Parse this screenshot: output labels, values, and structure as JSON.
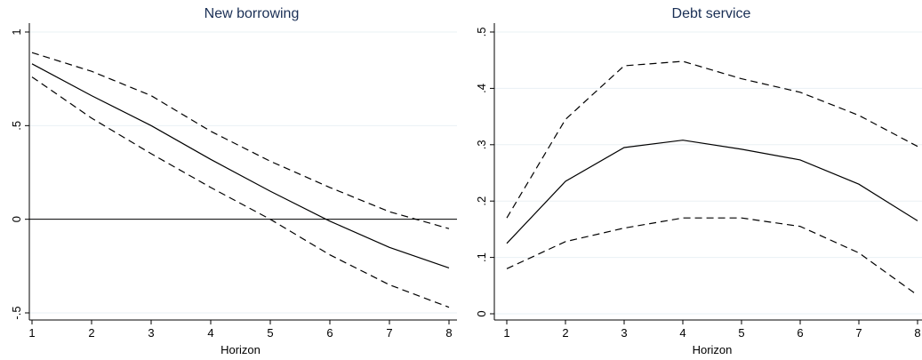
{
  "colors": {
    "line": "#000000",
    "gridline": "#eaf0f4",
    "title": "#1a2f55",
    "background": "#ffffff"
  },
  "chart_data": [
    {
      "type": "line",
      "title": "New borrowing",
      "xlabel": "Horizon",
      "ylabel": "",
      "x": [
        1,
        2,
        3,
        4,
        5,
        6,
        7,
        8
      ],
      "xlim": [
        1,
        8
      ],
      "ylim": [
        -0.5,
        1
      ],
      "x_ticks": [
        1,
        2,
        3,
        4,
        5,
        6,
        7,
        8
      ],
      "y_ticks": [
        -0.5,
        0,
        0.5,
        1
      ],
      "y_tick_labels": [
        "-.5",
        "0",
        ".5",
        "1"
      ],
      "y_tick_labels_rotated": true,
      "reference_line_y": 0,
      "grid": true,
      "legend": "none",
      "series": [
        {
          "style": "solid",
          "values": [
            0.83,
            0.66,
            0.5,
            0.32,
            0.15,
            -0.01,
            -0.15,
            -0.26
          ]
        },
        {
          "style": "dashed",
          "values": [
            0.89,
            0.79,
            0.66,
            0.47,
            0.31,
            0.17,
            0.04,
            -0.05
          ]
        },
        {
          "style": "dashed",
          "values": [
            0.76,
            0.54,
            0.35,
            0.17,
            0.0,
            -0.19,
            -0.35,
            -0.47
          ]
        }
      ]
    },
    {
      "type": "line",
      "title": "Debt service",
      "xlabel": "Horizon",
      "ylabel": "",
      "x": [
        1,
        2,
        3,
        4,
        5,
        6,
        7,
        8
      ],
      "xlim": [
        1,
        8
      ],
      "ylim": [
        0,
        0.5
      ],
      "x_ticks": [
        1,
        2,
        3,
        4,
        5,
        6,
        7,
        8
      ],
      "y_ticks": [
        0,
        0.1,
        0.2,
        0.3,
        0.4,
        0.5
      ],
      "y_tick_labels": [
        "0",
        ".1",
        ".2",
        ".3",
        ".4",
        ".5"
      ],
      "y_tick_labels_rotated": true,
      "grid": true,
      "legend": "none",
      "series": [
        {
          "style": "solid",
          "values": [
            0.125,
            0.235,
            0.295,
            0.308,
            0.292,
            0.273,
            0.23,
            0.165
          ]
        },
        {
          "style": "dashed",
          "values": [
            0.17,
            0.345,
            0.44,
            0.448,
            0.417,
            0.393,
            0.352,
            0.297
          ]
        },
        {
          "style": "dashed",
          "values": [
            0.08,
            0.128,
            0.152,
            0.17,
            0.17,
            0.155,
            0.108,
            0.033
          ]
        }
      ]
    }
  ]
}
